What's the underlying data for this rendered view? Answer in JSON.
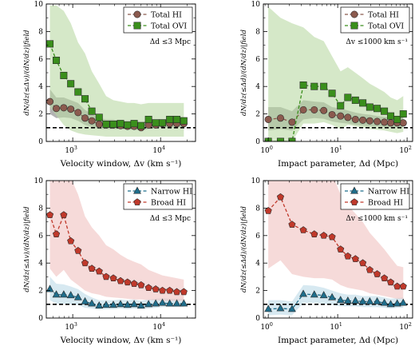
{
  "chart_data": [
    {
      "type": "line",
      "xscale": "log",
      "xlim": [
        500,
        25000
      ],
      "ylim": [
        0,
        10
      ],
      "yticks": [
        0,
        2,
        4,
        6,
        8,
        10
      ],
      "xticks": [
        {
          "v": 1000,
          "base": "10",
          "exp": "3"
        },
        {
          "v": 10000,
          "base": "10",
          "exp": "4"
        }
      ],
      "xlabel": "Velocity window, Δv (km s⁻¹)",
      "ylabel": "dN/dz(≤Δv)/(dN/dz)|field",
      "annotation": "Δd ≤3 Mpc",
      "legend": "top-right",
      "reference_line": 1,
      "x": [
        550,
        650,
        790,
        950,
        1150,
        1380,
        1650,
        2000,
        2400,
        2900,
        3500,
        4200,
        5000,
        6000,
        7300,
        8800,
        10500,
        12700,
        15300,
        18400
      ],
      "series": [
        {
          "name": "Total HI",
          "marker": "circle",
          "color": "#8b5a4e",
          "fill": "#7f7f7f",
          "y": [
            2.9,
            2.4,
            2.45,
            2.35,
            2.1,
            1.7,
            1.5,
            1.25,
            1.2,
            1.2,
            1.15,
            1.1,
            1.1,
            1.0,
            1.2,
            1.2,
            1.3,
            1.3,
            1.3,
            1.3
          ],
          "lo": [
            2.0,
            1.7,
            1.75,
            1.7,
            1.5,
            1.2,
            1.05,
            0.9,
            0.9,
            0.9,
            0.9,
            0.85,
            0.85,
            0.8,
            0.9,
            0.95,
            1.0,
            1.0,
            1.0,
            1.0
          ],
          "hi": [
            3.8,
            3.2,
            3.2,
            3.0,
            2.8,
            2.3,
            2.0,
            1.7,
            1.6,
            1.6,
            1.5,
            1.45,
            1.4,
            1.35,
            1.5,
            1.5,
            1.6,
            1.6,
            1.6,
            1.6
          ]
        },
        {
          "name": "Total OVI",
          "marker": "square",
          "color": "#3a8f1c",
          "fill": "#b9d8a4",
          "y": [
            7.1,
            5.9,
            4.8,
            4.2,
            3.6,
            3.1,
            2.2,
            1.75,
            1.25,
            1.25,
            1.3,
            1.2,
            1.3,
            1.15,
            1.6,
            1.35,
            1.35,
            1.6,
            1.6,
            1.5
          ],
          "lo": [
            2.5,
            1.9,
            1.2,
            0.8,
            0.6,
            0.5,
            0.45,
            0.4,
            0.35,
            0.35,
            0.35,
            0.35,
            0.35,
            0.35,
            0.35,
            0.35,
            0.35,
            0.35,
            0.35,
            0.35
          ],
          "hi": [
            9.9,
            9.9,
            9.5,
            8.6,
            7.2,
            6.4,
            5.1,
            4.2,
            3.3,
            3.0,
            2.9,
            2.8,
            2.8,
            2.7,
            2.8,
            2.8,
            2.8,
            2.8,
            2.8,
            2.8
          ]
        }
      ]
    },
    {
      "type": "line",
      "xscale": "log",
      "xlim": [
        0.85,
        120
      ],
      "ylim": [
        0,
        10
      ],
      "yticks": [
        0,
        2,
        4,
        6,
        8,
        10
      ],
      "xticks": [
        {
          "v": 1,
          "base": "10",
          "exp": "0"
        },
        {
          "v": 10,
          "base": "10",
          "exp": "1"
        },
        {
          "v": 100,
          "base": "10",
          "exp": "2"
        }
      ],
      "xlabel": "Impact parameter, Δd (Mpc)",
      "ylabel": "dN/dz(≤Δd)/(dN/dz)|field",
      "annotation": "Δv ≤1000 km s⁻¹",
      "legend": "top-right",
      "reference_line": 1,
      "x": [
        1.0,
        1.5,
        2.2,
        3.2,
        4.6,
        6.3,
        8.3,
        11,
        14,
        18,
        23,
        29,
        37,
        47,
        58,
        72,
        88
      ],
      "series": [
        {
          "name": "Total HI",
          "marker": "circle",
          "color": "#8b5a4e",
          "fill": "#7f7f7f",
          "y": [
            1.6,
            1.7,
            1.4,
            2.3,
            2.3,
            2.25,
            1.95,
            1.85,
            1.75,
            1.6,
            1.55,
            1.5,
            1.45,
            1.4,
            1.35,
            1.35,
            1.35
          ],
          "lo": [
            0.8,
            0.9,
            0.8,
            1.6,
            1.7,
            1.65,
            1.45,
            1.35,
            1.3,
            1.2,
            1.15,
            1.1,
            1.1,
            1.05,
            1.0,
            1.0,
            1.0
          ],
          "hi": [
            2.5,
            2.5,
            2.2,
            3.0,
            2.9,
            2.85,
            2.5,
            2.4,
            2.25,
            2.1,
            2.0,
            1.95,
            1.85,
            1.8,
            1.75,
            1.75,
            1.75
          ]
        },
        {
          "name": "Total OVI",
          "marker": "square",
          "color": "#3a8f1c",
          "fill": "#b9d8a4",
          "y": [
            0.0,
            0.0,
            0.0,
            4.1,
            4.0,
            4.0,
            3.5,
            2.6,
            3.2,
            3.0,
            2.8,
            2.5,
            2.4,
            2.2,
            1.85,
            1.6,
            2.0
          ],
          "lo": [
            0.0,
            0.0,
            0.0,
            1.3,
            1.3,
            1.4,
            1.2,
            0.9,
            1.2,
            1.1,
            1.0,
            0.9,
            0.85,
            0.8,
            0.7,
            0.6,
            0.7
          ],
          "hi": [
            9.8,
            9.0,
            8.6,
            8.3,
            7.6,
            7.3,
            6.2,
            5.1,
            5.4,
            5.0,
            4.6,
            4.2,
            3.9,
            3.6,
            3.2,
            3.0,
            3.3
          ]
        }
      ]
    },
    {
      "type": "line",
      "xscale": "log",
      "xlim": [
        500,
        25000
      ],
      "ylim": [
        0,
        10
      ],
      "yticks": [
        0,
        2,
        4,
        6,
        8,
        10
      ],
      "xticks": [
        {
          "v": 1000,
          "base": "10",
          "exp": "3"
        },
        {
          "v": 10000,
          "base": "10",
          "exp": "4"
        }
      ],
      "xlabel": "Velocity window, Δv (km s⁻¹)",
      "ylabel": "dN/dz(≤Δv)/(dN/dz)|field",
      "annotation": "Δd ≤3 Mpc",
      "legend": "top-right",
      "reference_line": 1,
      "x": [
        550,
        650,
        790,
        950,
        1150,
        1380,
        1650,
        2000,
        2400,
        2900,
        3500,
        4200,
        5000,
        6000,
        7300,
        8800,
        10500,
        12700,
        15300,
        18400
      ],
      "series": [
        {
          "name": "Narrow HI",
          "marker": "triangle",
          "color": "#1f6e8c",
          "fill": "#bcdbe8",
          "y": [
            2.1,
            1.7,
            1.7,
            1.65,
            1.5,
            1.2,
            1.05,
            0.9,
            0.95,
            0.95,
            1.0,
            0.95,
            1.0,
            0.9,
            1.0,
            1.05,
            1.1,
            1.05,
            1.05,
            1.05
          ],
          "lo": [
            1.3,
            1.05,
            1.05,
            1.0,
            0.95,
            0.75,
            0.7,
            0.6,
            0.65,
            0.65,
            0.7,
            0.65,
            0.7,
            0.65,
            0.7,
            0.75,
            0.8,
            0.8,
            0.8,
            0.8
          ],
          "hi": [
            3.0,
            2.5,
            2.45,
            2.3,
            2.1,
            1.75,
            1.5,
            1.3,
            1.3,
            1.3,
            1.35,
            1.3,
            1.35,
            1.25,
            1.35,
            1.4,
            1.45,
            1.4,
            1.4,
            1.4
          ]
        },
        {
          "name": "Broad HI",
          "marker": "pentagon",
          "color": "#c0392b",
          "fill": "#f0c2c0",
          "y": [
            7.5,
            6.1,
            7.5,
            5.6,
            4.9,
            4.0,
            3.6,
            3.4,
            3.0,
            2.9,
            2.7,
            2.6,
            2.5,
            2.4,
            2.2,
            2.1,
            2.0,
            2.0,
            1.9,
            1.9
          ],
          "lo": [
            3.6,
            3.0,
            3.5,
            2.8,
            2.4,
            2.0,
            1.8,
            1.7,
            1.55,
            1.5,
            1.45,
            1.4,
            1.35,
            1.35,
            1.3,
            1.3,
            1.25,
            1.25,
            1.25,
            1.25
          ],
          "hi": [
            12.5,
            11.2,
            12.5,
            10.2,
            9.0,
            7.4,
            6.6,
            6.0,
            5.3,
            5.0,
            4.6,
            4.3,
            4.1,
            3.9,
            3.5,
            3.3,
            3.1,
            3.0,
            2.9,
            2.8
          ]
        }
      ]
    },
    {
      "type": "line",
      "xscale": "log",
      "xlim": [
        0.85,
        120
      ],
      "ylim": [
        0,
        10
      ],
      "yticks": [
        0,
        2,
        4,
        6,
        8,
        10
      ],
      "xticks": [
        {
          "v": 1,
          "base": "10",
          "exp": "0"
        },
        {
          "v": 10,
          "base": "10",
          "exp": "1"
        },
        {
          "v": 100,
          "base": "10",
          "exp": "2"
        }
      ],
      "xlabel": "Impact parameter, Δd (Mpc)",
      "ylabel": "dN/dz(≤Δd)/(dN/dz)|field",
      "annotation": "Δv ≤1000 km s⁻¹",
      "legend": "top-right",
      "reference_line": 1,
      "x": [
        1.0,
        1.5,
        2.2,
        3.2,
        4.6,
        6.3,
        8.3,
        11,
        14,
        18,
        23,
        29,
        37,
        47,
        58,
        72,
        88
      ],
      "series": [
        {
          "name": "Narrow HI",
          "marker": "triangle",
          "color": "#1f6e8c",
          "fill": "#bcdbe8",
          "y": [
            0.65,
            0.7,
            0.65,
            1.75,
            1.7,
            1.65,
            1.5,
            1.3,
            1.25,
            1.25,
            1.2,
            1.2,
            1.2,
            1.1,
            1.0,
            1.05,
            1.1
          ],
          "lo": [
            0.2,
            0.25,
            0.2,
            1.1,
            1.1,
            1.05,
            0.95,
            0.85,
            0.85,
            0.85,
            0.8,
            0.8,
            0.8,
            0.75,
            0.7,
            0.75,
            0.75
          ],
          "hi": [
            1.3,
            1.3,
            1.2,
            2.4,
            2.35,
            2.2,
            2.0,
            1.8,
            1.7,
            1.7,
            1.6,
            1.6,
            1.6,
            1.5,
            1.4,
            1.45,
            1.5
          ]
        },
        {
          "name": "Broad HI",
          "marker": "pentagon",
          "color": "#c0392b",
          "fill": "#f0c2c0",
          "y": [
            7.8,
            8.8,
            6.8,
            6.4,
            6.1,
            6.0,
            5.9,
            5.0,
            4.5,
            4.3,
            4.0,
            3.5,
            3.2,
            2.9,
            2.6,
            2.3,
            2.3
          ],
          "lo": [
            3.6,
            4.2,
            3.2,
            3.0,
            2.9,
            2.9,
            2.8,
            2.4,
            2.2,
            2.1,
            2.0,
            1.8,
            1.7,
            1.6,
            1.5,
            1.4,
            1.4
          ],
          "hi": [
            12.5,
            12.5,
            12.5,
            11.5,
            11.0,
            10.8,
            10.5,
            9.0,
            8.2,
            7.6,
            7.0,
            6.2,
            5.6,
            5.0,
            4.4,
            3.8,
            3.7
          ]
        }
      ]
    }
  ]
}
